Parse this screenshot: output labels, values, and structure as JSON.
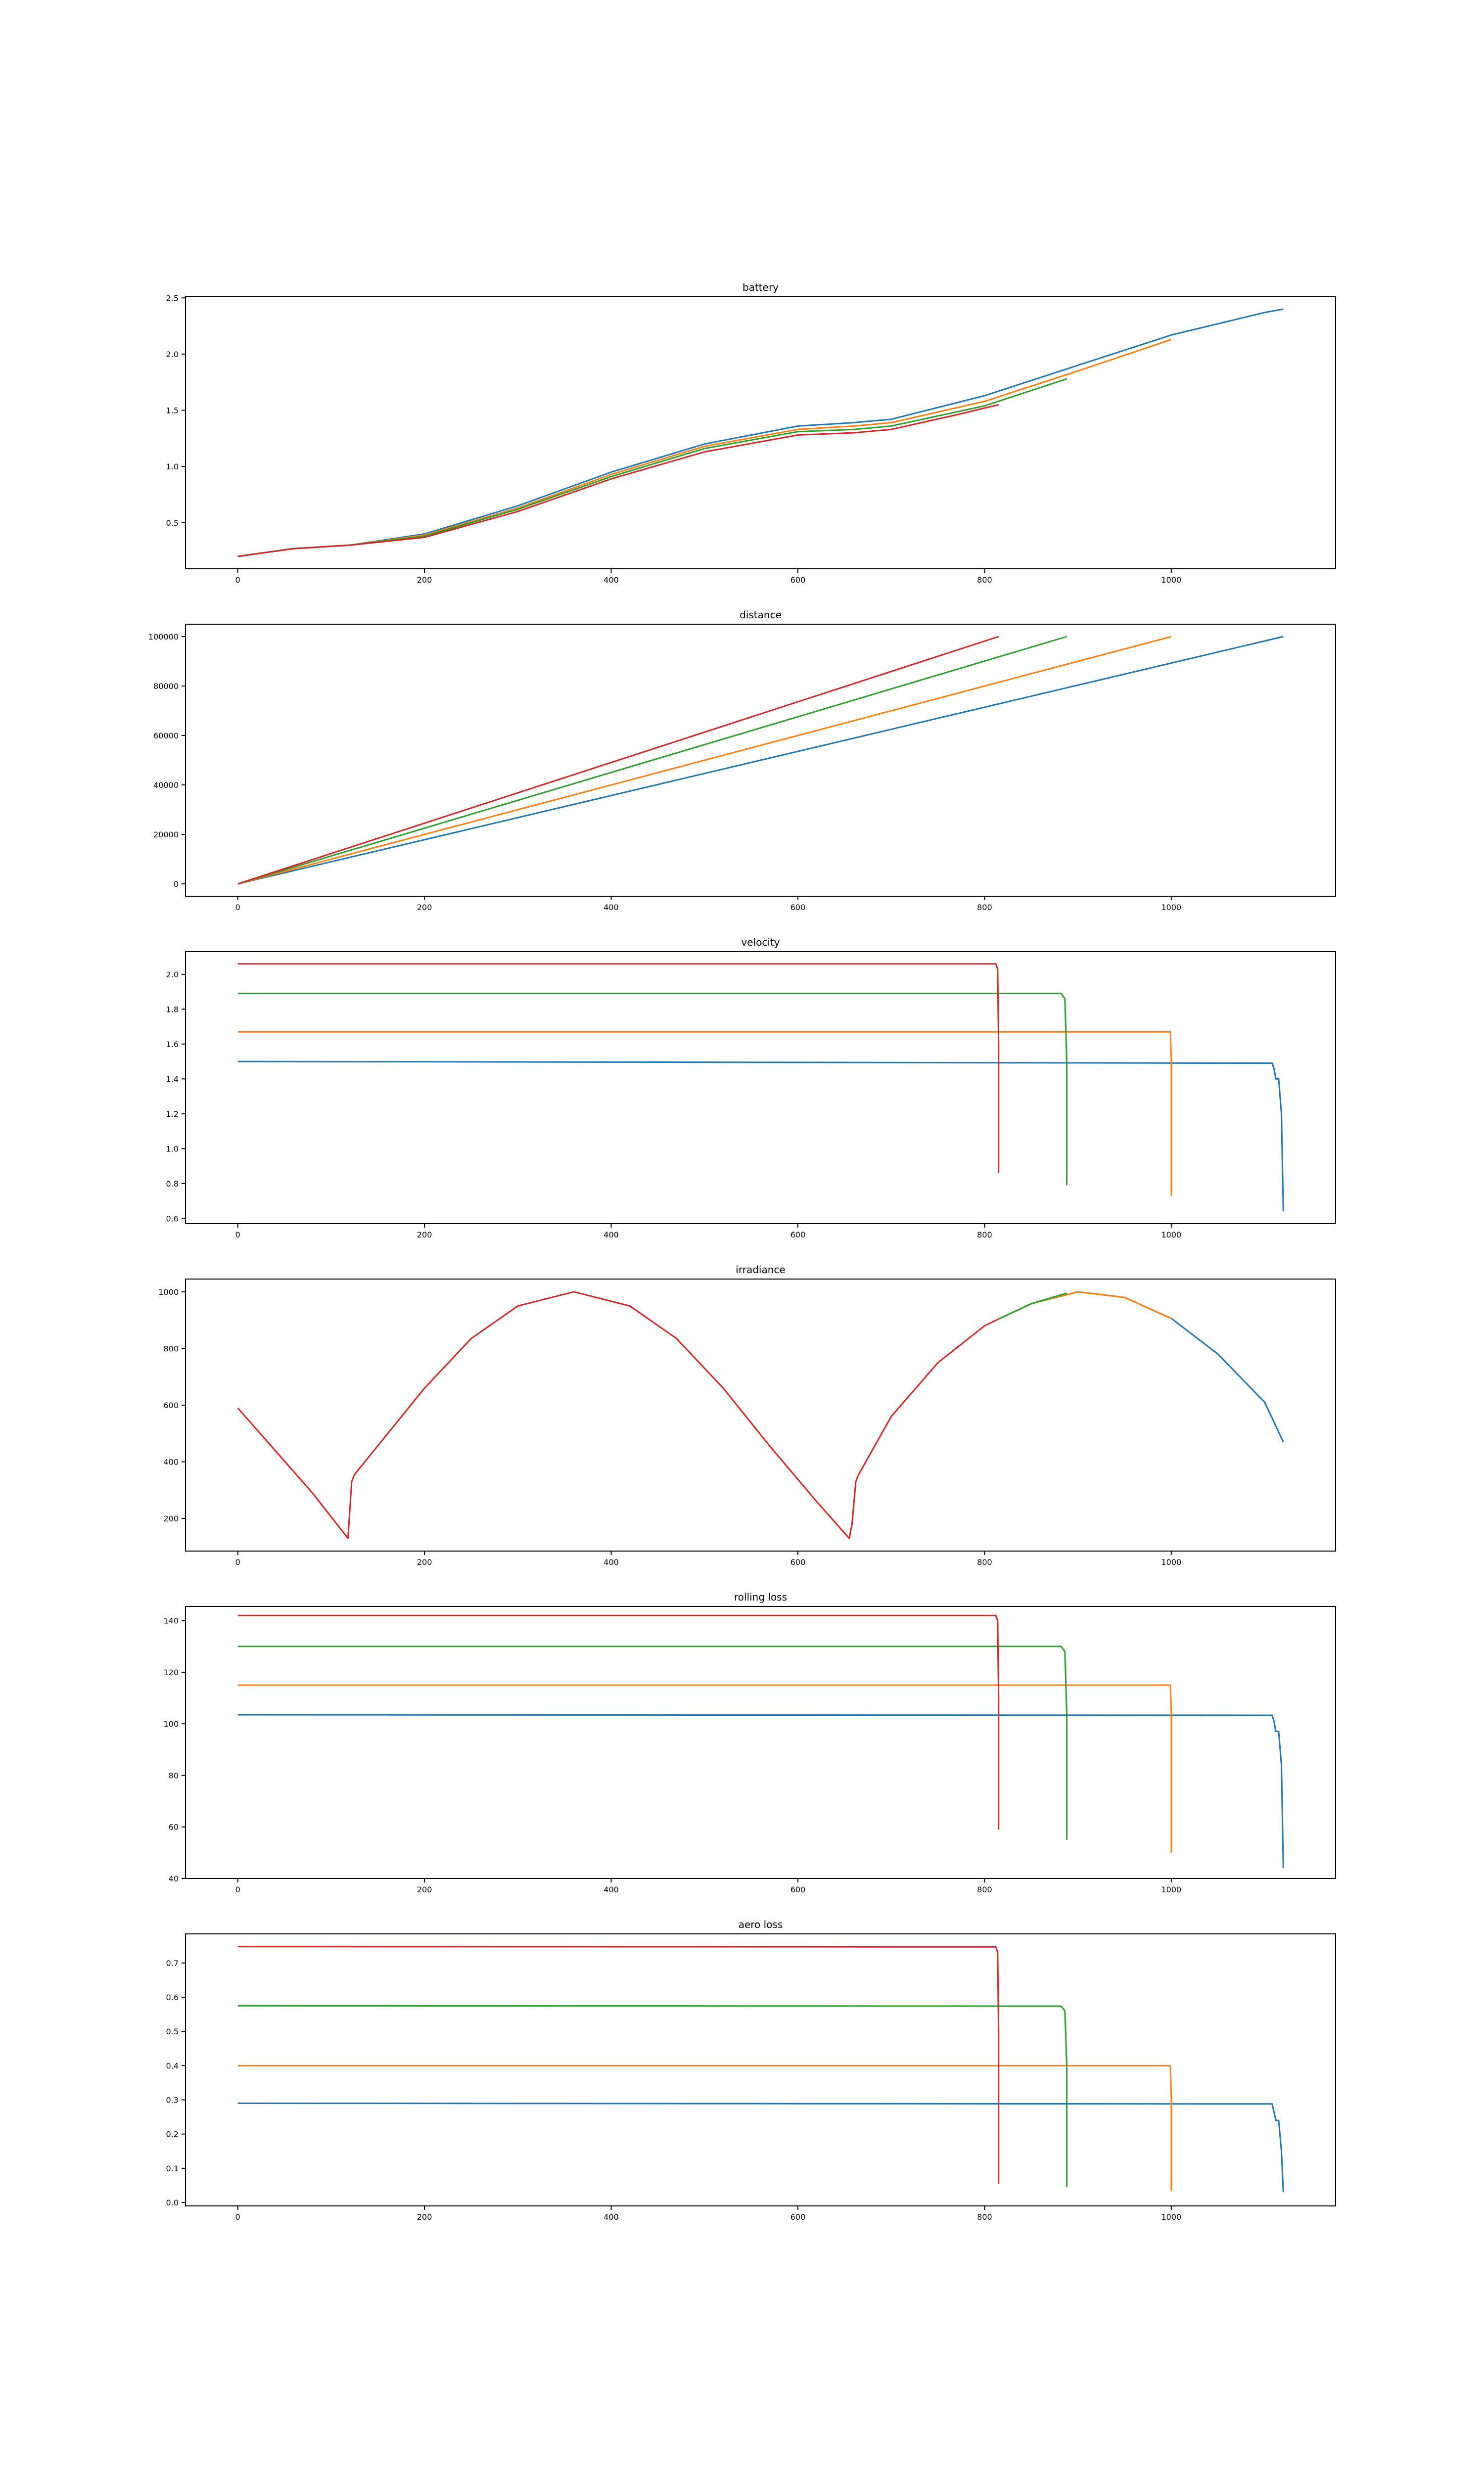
{
  "colors": {
    "c0": "#1f77b4",
    "c1": "#ff7f0e",
    "c2": "#2ca02c",
    "c3": "#d62728"
  },
  "chart_data": [
    {
      "type": "line",
      "title": "battery",
      "xlabel": "",
      "ylabel": "",
      "xlim": [
        -56,
        1176
      ],
      "ylim": [
        0.09,
        2.51
      ],
      "xticks": [
        0,
        200,
        400,
        600,
        800,
        1000
      ],
      "yticks": [
        0.5,
        1.0,
        1.5,
        2.0,
        2.5
      ],
      "ytick_labels": [
        "0.5",
        "1.0",
        "1.5",
        "2.0",
        "2.5"
      ],
      "grid": false,
      "series": [
        {
          "color": "#1f77b4",
          "x": [
            0,
            60,
            120,
            200,
            300,
            400,
            500,
            600,
            660,
            700,
            800,
            900,
            1000,
            1100,
            1120
          ],
          "y": [
            0.2,
            0.27,
            0.3,
            0.4,
            0.65,
            0.95,
            1.2,
            1.36,
            1.39,
            1.42,
            1.63,
            1.9,
            2.17,
            2.37,
            2.4
          ]
        },
        {
          "color": "#ff7f0e",
          "x": [
            0,
            60,
            120,
            200,
            300,
            400,
            500,
            600,
            660,
            700,
            800,
            900,
            1000
          ],
          "y": [
            0.2,
            0.27,
            0.3,
            0.39,
            0.63,
            0.93,
            1.18,
            1.33,
            1.36,
            1.39,
            1.58,
            1.85,
            2.13
          ]
        },
        {
          "color": "#2ca02c",
          "x": [
            0,
            60,
            120,
            200,
            300,
            400,
            500,
            600,
            660,
            700,
            800,
            888
          ],
          "y": [
            0.2,
            0.27,
            0.3,
            0.38,
            0.62,
            0.91,
            1.16,
            1.31,
            1.33,
            1.36,
            1.54,
            1.78
          ]
        },
        {
          "color": "#d62728",
          "x": [
            0,
            60,
            120,
            200,
            300,
            400,
            500,
            600,
            660,
            700,
            770,
            815
          ],
          "y": [
            0.2,
            0.27,
            0.3,
            0.37,
            0.6,
            0.89,
            1.13,
            1.28,
            1.3,
            1.33,
            1.46,
            1.55
          ]
        }
      ]
    },
    {
      "type": "line",
      "title": "distance",
      "xlabel": "",
      "ylabel": "",
      "xlim": [
        -56,
        1176
      ],
      "ylim": [
        -5000,
        105000
      ],
      "xticks": [
        0,
        200,
        400,
        600,
        800,
        1000
      ],
      "yticks": [
        0,
        20000,
        40000,
        60000,
        80000,
        100000
      ],
      "ytick_labels": [
        "0",
        "20000",
        "40000",
        "60000",
        "80000",
        "100000"
      ],
      "grid": false,
      "series": [
        {
          "color": "#1f77b4",
          "x": [
            0,
            1120
          ],
          "y": [
            0,
            100000
          ]
        },
        {
          "color": "#ff7f0e",
          "x": [
            0,
            1000
          ],
          "y": [
            0,
            100000
          ]
        },
        {
          "color": "#2ca02c",
          "x": [
            0,
            888
          ],
          "y": [
            0,
            100000
          ]
        },
        {
          "color": "#d62728",
          "x": [
            0,
            815
          ],
          "y": [
            0,
            100000
          ]
        }
      ]
    },
    {
      "type": "line",
      "title": "velocity",
      "xlabel": "",
      "ylabel": "",
      "xlim": [
        -56,
        1176
      ],
      "ylim": [
        0.57,
        2.13
      ],
      "xticks": [
        0,
        200,
        400,
        600,
        800,
        1000
      ],
      "yticks": [
        0.6,
        0.8,
        1.0,
        1.2,
        1.4,
        1.6,
        1.8,
        2.0
      ],
      "ytick_labels": [
        "0.6",
        "0.8",
        "1.0",
        "1.2",
        "1.4",
        "1.6",
        "1.8",
        "2.0"
      ],
      "grid": false,
      "series": [
        {
          "color": "#1f77b4",
          "x": [
            0,
            1108,
            1110,
            1112,
            1115,
            1118,
            1120
          ],
          "y": [
            1.5,
            1.49,
            1.46,
            1.4,
            1.4,
            1.2,
            0.64
          ]
        },
        {
          "color": "#ff7f0e",
          "x": [
            0,
            999,
            1000,
            1000
          ],
          "y": [
            1.67,
            1.67,
            1.5,
            0.73
          ]
        },
        {
          "color": "#2ca02c",
          "x": [
            0,
            882,
            886,
            888,
            888
          ],
          "y": [
            1.89,
            1.89,
            1.86,
            1.5,
            0.79
          ]
        },
        {
          "color": "#d62728",
          "x": [
            0,
            812,
            814,
            815,
            815
          ],
          "y": [
            2.06,
            2.06,
            2.03,
            1.6,
            0.86
          ]
        }
      ]
    },
    {
      "type": "line",
      "title": "irradiance",
      "xlabel": "",
      "ylabel": "",
      "xlim": [
        -56,
        1176
      ],
      "ylim": [
        85,
        1045
      ],
      "xticks": [
        0,
        200,
        400,
        600,
        800,
        1000
      ],
      "yticks": [
        200,
        400,
        600,
        800,
        1000
      ],
      "ytick_labels": [
        "200",
        "400",
        "600",
        "800",
        "1000"
      ],
      "grid": false,
      "series": [
        {
          "color": "#1f77b4",
          "x": [
            815,
            850,
            900,
            950,
            1000,
            1050,
            1100,
            1120
          ],
          "y": [
            904,
            958,
            1000,
            980,
            906,
            780,
            610,
            470
          ]
        },
        {
          "color": "#ff7f0e",
          "x": [
            815,
            850,
            900,
            950,
            1000
          ],
          "y": [
            904,
            958,
            1000,
            980,
            906
          ]
        },
        {
          "color": "#2ca02c",
          "x": [
            815,
            850,
            888
          ],
          "y": [
            904,
            958,
            995
          ]
        },
        {
          "color": "#d62728",
          "x": [
            0,
            40,
            80,
            118,
            119,
            122,
            125,
            200,
            250,
            300,
            360,
            420,
            470,
            520,
            570,
            620,
            655,
            658,
            662,
            665,
            700,
            750,
            800,
            815
          ],
          "y": [
            590,
            440,
            290,
            130,
            180,
            330,
            355,
            660,
            835,
            950,
            1000,
            950,
            835,
            660,
            455,
            260,
            130,
            180,
            330,
            355,
            560,
            750,
            880,
            904
          ]
        }
      ]
    },
    {
      "type": "line",
      "title": "rolling loss",
      "xlabel": "",
      "ylabel": "",
      "xlim": [
        -56,
        1176
      ],
      "ylim": [
        40,
        145.5
      ],
      "xticks": [
        0,
        200,
        400,
        600,
        800,
        1000
      ],
      "yticks": [
        40,
        60,
        80,
        100,
        120,
        140
      ],
      "ytick_labels": [
        "40",
        "60",
        "80",
        "100",
        "120",
        "140"
      ],
      "grid": false,
      "series": [
        {
          "color": "#1f77b4",
          "x": [
            0,
            1108,
            1110,
            1112,
            1115,
            1118,
            1120
          ],
          "y": [
            103.5,
            103.3,
            101,
            97,
            97,
            84,
            44
          ]
        },
        {
          "color": "#ff7f0e",
          "x": [
            0,
            999,
            1000,
            1000
          ],
          "y": [
            115,
            115,
            104,
            50
          ]
        },
        {
          "color": "#2ca02c",
          "x": [
            0,
            882,
            886,
            888,
            888
          ],
          "y": [
            130,
            130,
            128,
            104,
            55
          ]
        },
        {
          "color": "#d62728",
          "x": [
            0,
            812,
            814,
            815,
            815
          ],
          "y": [
            142,
            142,
            140,
            110,
            59
          ]
        }
      ]
    },
    {
      "type": "line",
      "title": "aero loss",
      "xlabel": "",
      "ylabel": "",
      "xlim": [
        -56,
        1176
      ],
      "ylim": [
        -0.01,
        0.785
      ],
      "xticks": [
        0,
        200,
        400,
        600,
        800,
        1000
      ],
      "yticks": [
        0.0,
        0.1,
        0.2,
        0.3,
        0.4,
        0.5,
        0.6,
        0.7
      ],
      "ytick_labels": [
        "0.0",
        "0.1",
        "0.2",
        "0.3",
        "0.4",
        "0.5",
        "0.6",
        "0.7"
      ],
      "grid": false,
      "series": [
        {
          "color": "#1f77b4",
          "x": [
            0,
            1108,
            1110,
            1112,
            1115,
            1118,
            1120
          ],
          "y": [
            0.29,
            0.288,
            0.265,
            0.24,
            0.24,
            0.15,
            0.03
          ]
        },
        {
          "color": "#ff7f0e",
          "x": [
            0,
            999,
            1000,
            1000
          ],
          "y": [
            0.4,
            0.4,
            0.3,
            0.035
          ]
        },
        {
          "color": "#2ca02c",
          "x": [
            0,
            882,
            886,
            888,
            888
          ],
          "y": [
            0.575,
            0.574,
            0.56,
            0.4,
            0.045
          ]
        },
        {
          "color": "#d62728",
          "x": [
            0,
            812,
            814,
            815,
            815
          ],
          "y": [
            0.748,
            0.747,
            0.73,
            0.5,
            0.055
          ]
        }
      ]
    }
  ]
}
